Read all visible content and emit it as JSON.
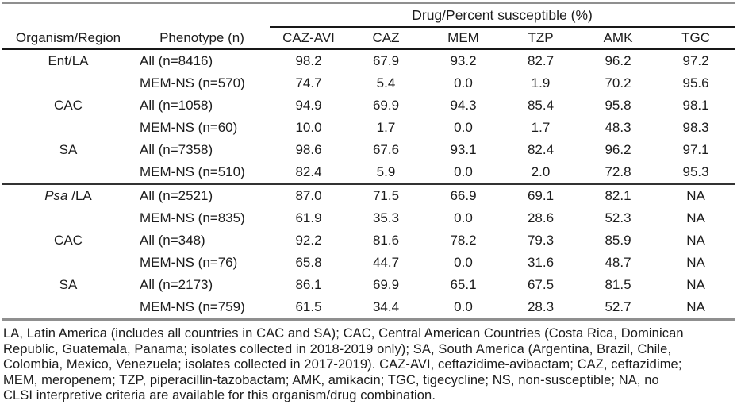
{
  "table": {
    "group_header": "Drug/Percent susceptible (%)",
    "columns": [
      "Organism/Region",
      "Phenotype (n)",
      "CAZ-AVI",
      "CAZ",
      "MEM",
      "TZP",
      "AMK",
      "TGC"
    ],
    "sections": [
      {
        "rows": [
          {
            "organism": [
              {
                "text": "Ent/LA",
                "italic": false
              }
            ],
            "phenotype": "All (n=8416)",
            "values": [
              "98.2",
              "67.9",
              "93.2",
              "82.7",
              "96.2",
              "97.2"
            ]
          },
          {
            "organism": [],
            "phenotype": "MEM-NS (n=570)",
            "values": [
              "74.7",
              "5.4",
              "0.0",
              "1.9",
              "70.2",
              "95.6"
            ]
          },
          {
            "organism": [
              {
                "text": "CAC",
                "italic": false
              }
            ],
            "phenotype": "All (n=1058)",
            "values": [
              "94.9",
              "69.9",
              "94.3",
              "85.4",
              "95.8",
              "98.1"
            ]
          },
          {
            "organism": [],
            "phenotype": "MEM-NS (n=60)",
            "values": [
              "10.0",
              "1.7",
              "0.0",
              "1.7",
              "48.3",
              "98.3"
            ]
          },
          {
            "organism": [
              {
                "text": "SA",
                "italic": false
              }
            ],
            "phenotype": "All (n=7358)",
            "values": [
              "98.6",
              "67.6",
              "93.1",
              "82.4",
              "96.2",
              "97.1"
            ]
          },
          {
            "organism": [],
            "phenotype": "MEM-NS (n=510)",
            "values": [
              "82.4",
              "5.9",
              "0.0",
              "2.0",
              "72.8",
              "95.3"
            ]
          }
        ]
      },
      {
        "rows": [
          {
            "organism": [
              {
                "text": "Psa",
                "italic": true
              },
              {
                "text": " /LA",
                "italic": false
              }
            ],
            "phenotype": "All (n=2521)",
            "values": [
              "87.0",
              "71.5",
              "66.9",
              "69.1",
              "82.1",
              "NA"
            ]
          },
          {
            "organism": [],
            "phenotype": "MEM-NS (n=835)",
            "values": [
              "61.9",
              "35.3",
              "0.0",
              "28.6",
              "52.3",
              "NA"
            ]
          },
          {
            "organism": [
              {
                "text": "CAC",
                "italic": false
              }
            ],
            "phenotype": "All (n=348)",
            "values": [
              "92.2",
              "81.6",
              "78.2",
              "79.3",
              "85.9",
              "NA"
            ]
          },
          {
            "organism": [],
            "phenotype": "MEM-NS (n=76)",
            "values": [
              "65.8",
              "44.7",
              "0.0",
              "31.6",
              "48.7",
              "NA"
            ]
          },
          {
            "organism": [
              {
                "text": "SA",
                "italic": false
              }
            ],
            "phenotype": "All (n=2173)",
            "values": [
              "86.1",
              "69.9",
              "65.1",
              "67.5",
              "81.5",
              "NA"
            ]
          },
          {
            "organism": [],
            "phenotype": "MEM-NS (n=759)",
            "values": [
              "61.5",
              "34.4",
              "0.0",
              "28.3",
              "52.7",
              "NA"
            ]
          }
        ]
      }
    ]
  },
  "footnote_lines": [
    "LA, Latin America (includes all countries in CAC and SA); CAC, Central American Countries (Costa Rica, Dominican",
    "Republic, Guatemala, Panama; isolates collected in 2018-2019 only); SA, South America (Argentina, Brazil, Chile,",
    "Colombia, Mexico, Venezuela; isolates collected in 2017-2019). CAZ-AVI, ceftazidime-avibactam; CAZ, ceftazidime;",
    "MEM, meropenem; TZP, piperacillin-tazobactam; AMK, amikacin; TGC, tigecycline; NS, non-susceptible; NA, no",
    "CLSI interpretive criteria are available for this organism/drug combination."
  ]
}
